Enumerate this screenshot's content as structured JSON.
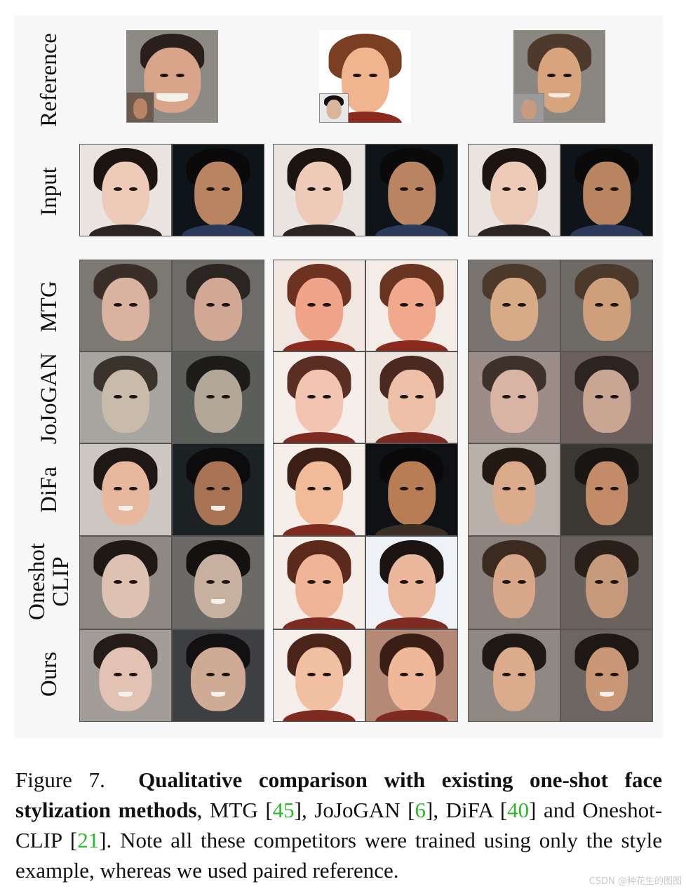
{
  "figure": {
    "row_labels": {
      "reference": "Reference",
      "input": "Input",
      "mtg": "MTG",
      "jojogan": "JoJoGAN",
      "difa": "DiFa",
      "oneshot_line1": "Oneshot",
      "oneshot_line2": "CLIP",
      "ours": "Ours"
    }
  },
  "caption": {
    "prefix": "Figure 7.",
    "bold": "Qualitative comparison with existing one-shot face stylization methods",
    "part1": ", MTG [",
    "cite1": "45",
    "part2": "], JoJoGAN [",
    "cite2": "6",
    "part3": "], DiFA [",
    "cite3": "40",
    "part4": "] and Oneshot-CLIP [",
    "cite4": "21",
    "part5": "]. Note all these competitors were trained using only the style example, whereas we used paired reference."
  },
  "watermark": "CSDN @种花生的图图",
  "colors": {
    "citation": "#2bb92b",
    "cell_border": "#555555"
  }
}
